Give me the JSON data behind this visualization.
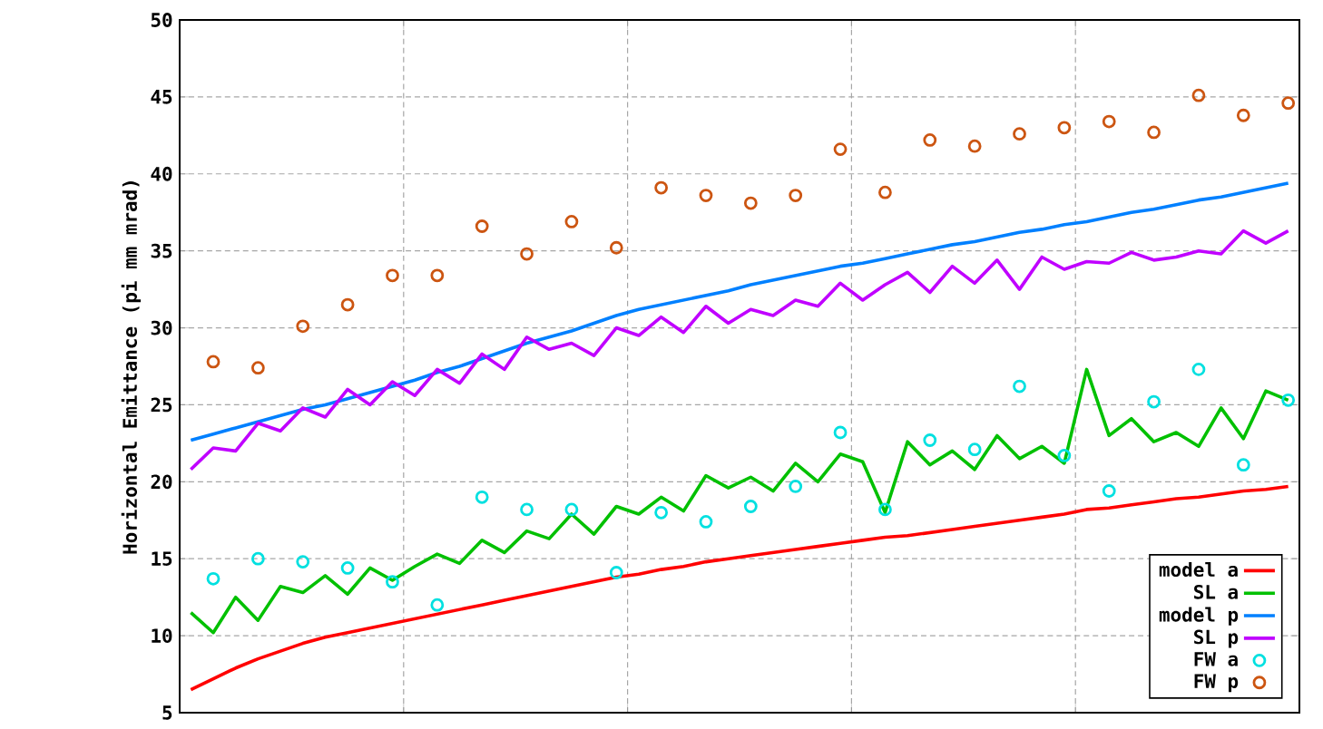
{
  "chart_data": {
    "type": "line",
    "ylabel": "Horizontal Emittance (pi mm mrad)",
    "categories": [
      null,
      null,
      null,
      null,
      null,
      null,
      null,
      null,
      null,
      null,
      null,
      null,
      null,
      null,
      null,
      null,
      null,
      null,
      null,
      null,
      null,
      null,
      null,
      null,
      null,
      null,
      null,
      null,
      null,
      null,
      null,
      null,
      null,
      null,
      null,
      null,
      null,
      null,
      null,
      null,
      null,
      null,
      null,
      null,
      null,
      null,
      null,
      null,
      null,
      null
    ],
    "ylim": [
      5,
      50
    ],
    "yticks": [
      5,
      10,
      15,
      20,
      25,
      30,
      35,
      40,
      45,
      50
    ],
    "grid": true,
    "legend": "bottom right",
    "tick_labels": "y",
    "series": [
      {
        "name": "model a",
        "color": "#ff0000",
        "values": [
          6.5,
          7.2,
          7.9,
          8.5,
          9.0,
          9.5,
          9.9,
          10.2,
          10.5,
          10.8,
          11.1,
          11.4,
          11.7,
          12.0,
          12.3,
          12.6,
          12.9,
          13.2,
          13.5,
          13.8,
          14.0,
          14.3,
          14.5,
          14.8,
          15.0,
          15.2,
          15.4,
          15.6,
          15.8,
          16.0,
          16.2,
          16.4,
          16.5,
          16.7,
          16.9,
          17.1,
          17.3,
          17.5,
          17.7,
          17.9,
          18.2,
          18.3,
          18.5,
          18.7,
          18.9,
          19.0,
          19.2,
          19.4,
          19.5,
          19.7
        ]
      },
      {
        "name": "SL a",
        "color": "#00c000",
        "values": [
          11.5,
          10.2,
          12.5,
          11.0,
          13.2,
          12.8,
          13.9,
          12.7,
          14.4,
          13.6,
          14.5,
          15.3,
          14.7,
          16.2,
          15.4,
          16.8,
          16.3,
          17.9,
          16.6,
          18.4,
          17.9,
          19.0,
          18.1,
          20.4,
          19.6,
          20.3,
          19.4,
          21.2,
          20.0,
          21.8,
          21.3,
          18.0,
          22.6,
          21.1,
          22.0,
          20.8,
          23.0,
          21.5,
          22.3,
          21.2,
          27.3,
          23.0,
          24.1,
          22.6,
          23.2,
          22.3,
          24.8,
          22.8,
          25.9,
          25.3
        ]
      },
      {
        "name": "model p",
        "color": "#0080ff",
        "values": [
          22.7,
          23.1,
          23.5,
          23.9,
          24.3,
          24.7,
          25.0,
          25.4,
          25.8,
          26.2,
          26.6,
          27.1,
          27.5,
          28.0,
          28.5,
          29.0,
          29.4,
          29.8,
          30.3,
          30.8,
          31.2,
          31.5,
          31.8,
          32.1,
          32.4,
          32.8,
          33.1,
          33.4,
          33.7,
          34.0,
          34.2,
          34.5,
          34.8,
          35.1,
          35.4,
          35.6,
          35.9,
          36.2,
          36.4,
          36.7,
          36.9,
          37.2,
          37.5,
          37.7,
          38.0,
          38.3,
          38.5,
          38.8,
          39.1,
          39.4
        ]
      },
      {
        "name": "SL p",
        "color": "#c000ff",
        "values": [
          20.8,
          22.2,
          22.0,
          23.8,
          23.3,
          24.8,
          24.2,
          26.0,
          25.0,
          26.5,
          25.6,
          27.3,
          26.4,
          28.3,
          27.3,
          29.4,
          28.6,
          29.0,
          28.2,
          30.0,
          29.5,
          30.7,
          29.7,
          31.4,
          30.3,
          31.2,
          30.8,
          31.8,
          31.4,
          32.9,
          31.8,
          32.8,
          33.6,
          32.3,
          34.0,
          32.9,
          34.4,
          32.5,
          34.6,
          33.8,
          34.3,
          34.2,
          34.9,
          34.4,
          34.6,
          35.0,
          34.8,
          36.3,
          35.5,
          36.3
        ]
      },
      {
        "name": "FW a",
        "type": "scatter",
        "marker": "circle",
        "color": "#00e0e0",
        "values": [
          null,
          13.7,
          null,
          15.0,
          null,
          14.8,
          null,
          14.4,
          null,
          13.5,
          null,
          12.0,
          null,
          19.0,
          null,
          18.2,
          null,
          18.2,
          null,
          14.1,
          null,
          18.0,
          null,
          17.4,
          null,
          18.4,
          null,
          19.7,
          null,
          23.2,
          null,
          18.2,
          null,
          22.7,
          null,
          22.1,
          null,
          26.2,
          null,
          21.7,
          null,
          19.4,
          null,
          25.2,
          null,
          27.3,
          null,
          21.1,
          null,
          25.3
        ]
      },
      {
        "name": "FW p",
        "type": "scatter",
        "marker": "circle",
        "color": "#cc5511",
        "values": [
          null,
          27.8,
          null,
          27.4,
          null,
          30.1,
          null,
          31.5,
          null,
          33.4,
          null,
          33.4,
          null,
          36.6,
          null,
          34.8,
          null,
          36.9,
          null,
          35.2,
          null,
          39.1,
          null,
          38.6,
          null,
          38.1,
          null,
          38.6,
          null,
          41.6,
          null,
          38.8,
          null,
          42.2,
          null,
          41.8,
          null,
          42.6,
          null,
          43.0,
          null,
          43.4,
          null,
          42.7,
          null,
          45.1,
          null,
          43.8,
          null,
          44.6
        ]
      }
    ]
  }
}
